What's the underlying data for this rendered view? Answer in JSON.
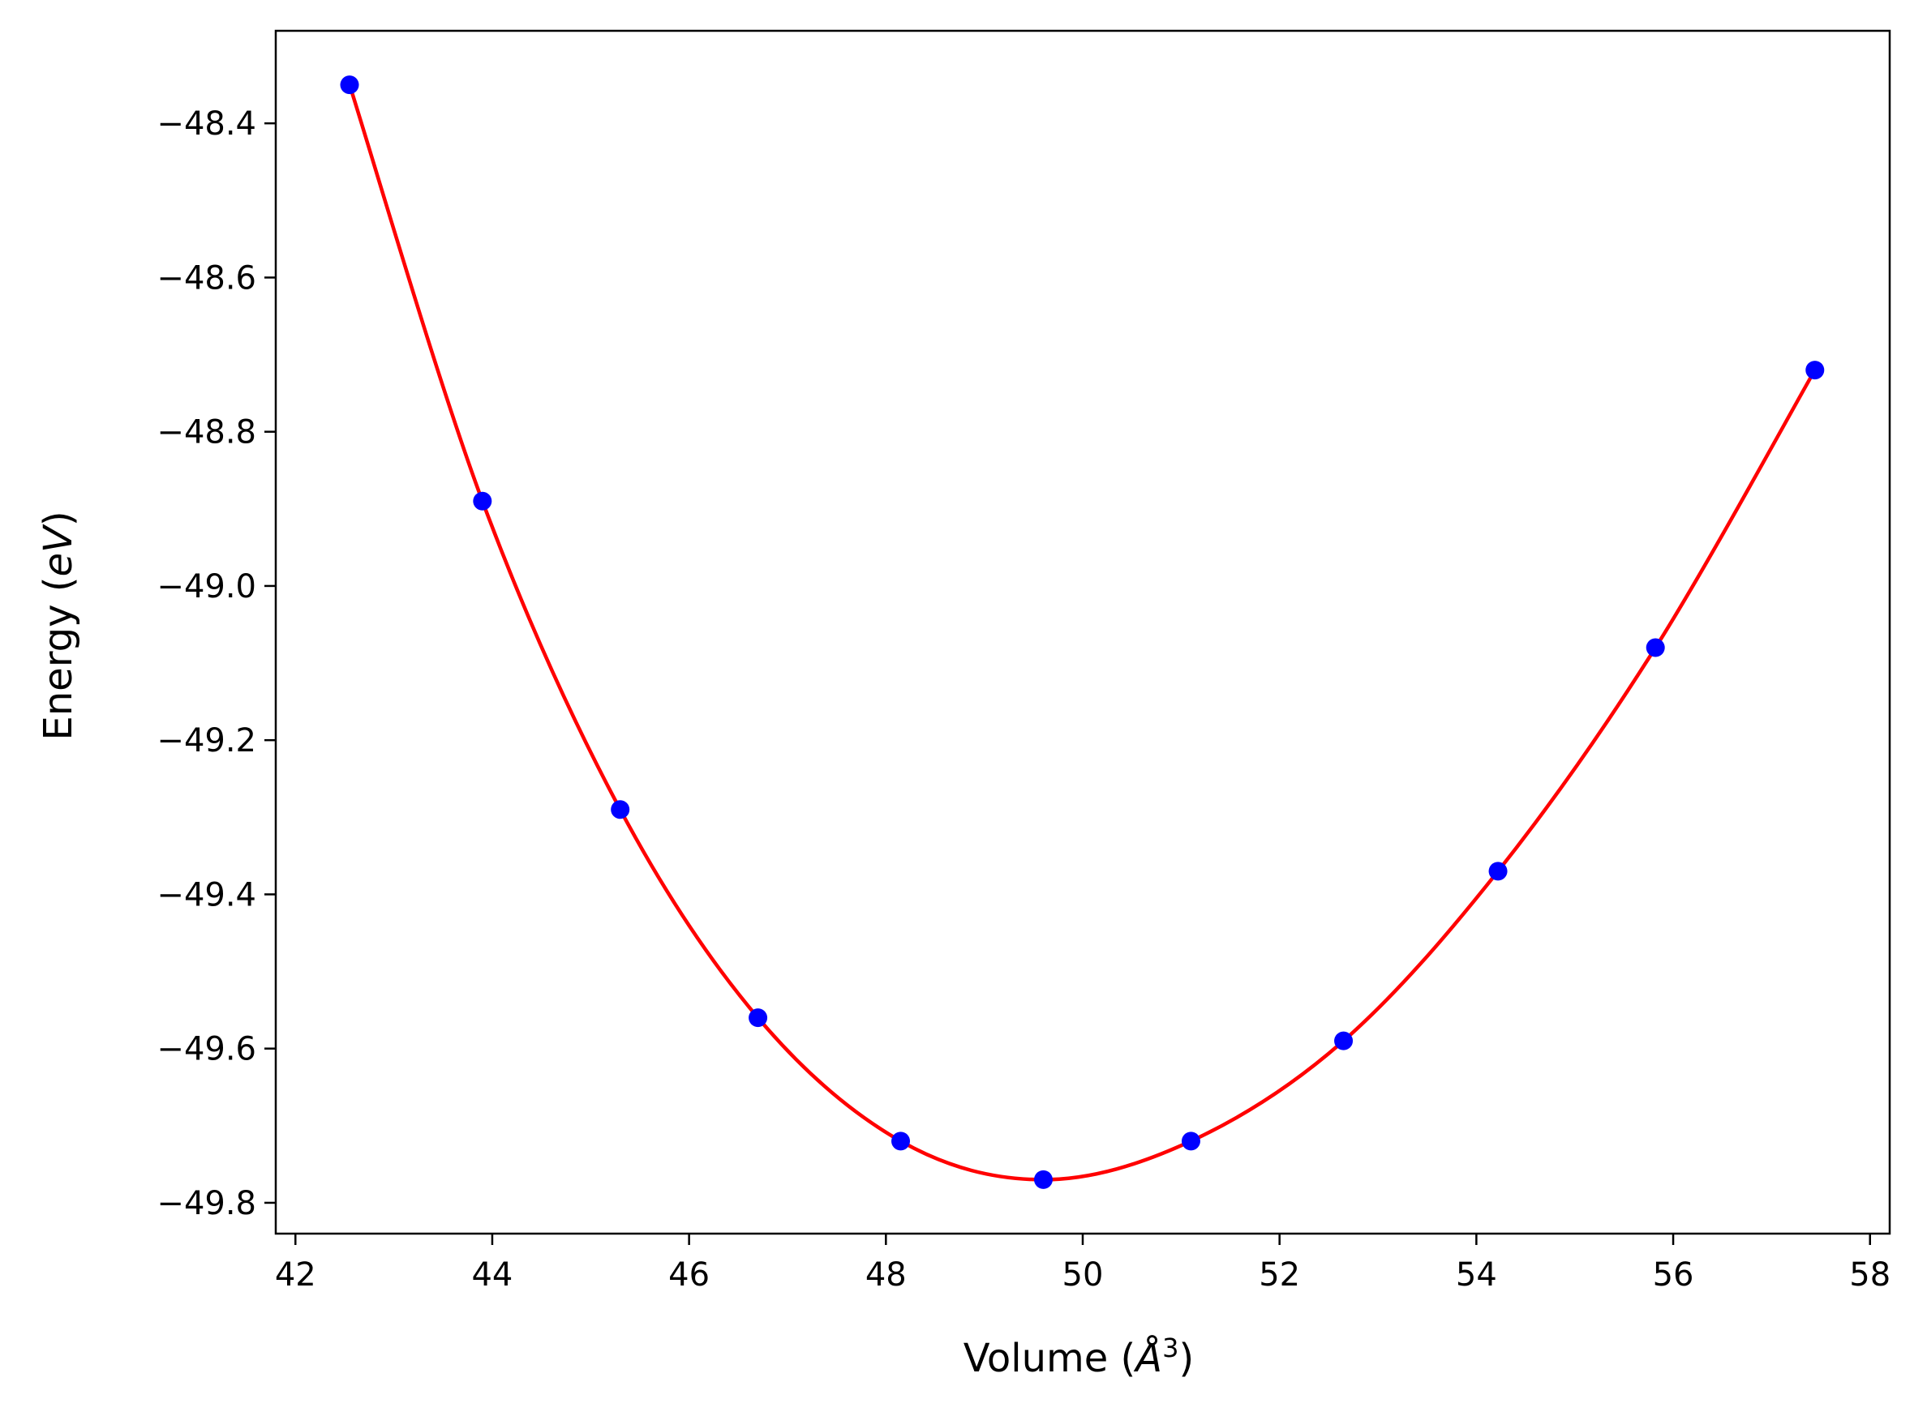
{
  "chart_data": {
    "type": "scatter",
    "title": "",
    "xlabel": "Volume (Å³)",
    "ylabel": "Energy (eV)",
    "xlabel_parts": {
      "prefix": "Volume (",
      "symbol": "Å",
      "exponent": "3",
      "suffix": ")"
    },
    "ylabel_parts": {
      "prefix": "Energy (",
      "unit": "eV",
      "suffix": ")"
    },
    "xlim": [
      41.8,
      58.2
    ],
    "ylim": [
      -49.84,
      -48.28
    ],
    "xticks": [
      42,
      44,
      46,
      48,
      50,
      52,
      54,
      56,
      58
    ],
    "yticks": [
      -48.4,
      -48.6,
      -48.8,
      -49.0,
      -49.2,
      -49.4,
      -49.6,
      -49.8
    ],
    "xtick_labels": [
      "42",
      "44",
      "46",
      "48",
      "50",
      "52",
      "54",
      "56",
      "58"
    ],
    "ytick_labels": [
      "−48.4",
      "−48.6",
      "−48.8",
      "−49.0",
      "−49.2",
      "−49.4",
      "−49.6",
      "−49.8"
    ],
    "grid": false,
    "series": [
      {
        "kind": "points",
        "color": "#0000ff",
        "x": [
          42.55,
          43.9,
          45.3,
          46.7,
          48.15,
          49.6,
          51.1,
          52.65,
          54.22,
          55.82,
          57.44
        ],
        "y": [
          -48.35,
          -48.89,
          -49.29,
          -49.56,
          -49.72,
          -49.77,
          -49.72,
          -49.59,
          -49.37,
          -49.08,
          -48.72
        ]
      },
      {
        "kind": "fit-curve",
        "color": "#ff0000",
        "x": [
          42.55,
          43.9,
          45.3,
          46.7,
          48.15,
          49.6,
          51.1,
          52.65,
          54.22,
          55.82,
          57.44
        ],
        "y": [
          -48.35,
          -48.89,
          -49.29,
          -49.56,
          -49.72,
          -49.77,
          -49.72,
          -49.59,
          -49.37,
          -49.08,
          -48.72
        ]
      }
    ]
  }
}
